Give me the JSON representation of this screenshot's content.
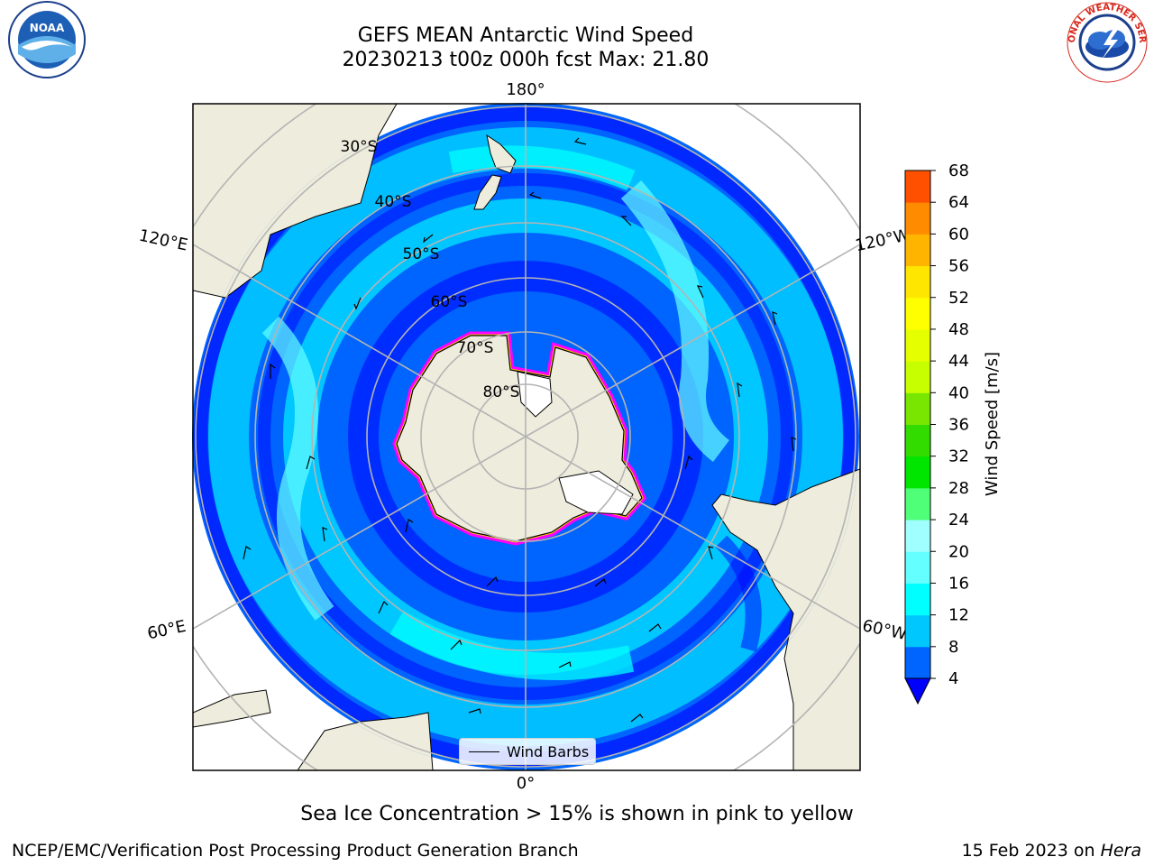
{
  "title": {
    "line1": "GEFS MEAN Antarctic Wind Speed",
    "line2": "20230213 t00z 000h fcst   Max: 21.80"
  },
  "map": {
    "projection": "south-polar-stereographic",
    "longitude_labels": {
      "top": "180°",
      "bottom": "0°",
      "upper_left": "120°E",
      "upper_right": "120°W",
      "lower_left": "60°E",
      "lower_right": "60°W"
    },
    "latitude_labels": [
      "30°S",
      "40°S",
      "50°S",
      "60°S",
      "70°S",
      "80°S"
    ],
    "land_color": "#eeecdc",
    "gridline_color": "#b4b4b4",
    "legend_label": "Wind Barbs"
  },
  "colorbar": {
    "label": "Wind Speed [m/s]",
    "ticks": [
      "4",
      "8",
      "12",
      "16",
      "20",
      "24",
      "28",
      "32",
      "36",
      "40",
      "44",
      "48",
      "52",
      "56",
      "60",
      "64",
      "68"
    ],
    "colors": [
      "#0000ff",
      "#0064ff",
      "#00c8ff",
      "#00ffff",
      "#64ffff",
      "#a0ffff",
      "#50ff78",
      "#00e600",
      "#32dc00",
      "#78e600",
      "#c8ff00",
      "#e6ff00",
      "#ffff00",
      "#ffe600",
      "#ffb400",
      "#ff8c00",
      "#ff5000",
      "#ff0000"
    ]
  },
  "caption": "Sea Ice Concentration > 15% is shown in pink to yellow",
  "footer": {
    "left": "NCEP/EMC/Verification Post Processing Product Generation Branch",
    "right_prefix": "15 Feb 2023 on ",
    "right_italic": "Hera"
  },
  "logos": {
    "left": "NOAA",
    "right": "NATIONAL WEATHER SERVICE"
  }
}
